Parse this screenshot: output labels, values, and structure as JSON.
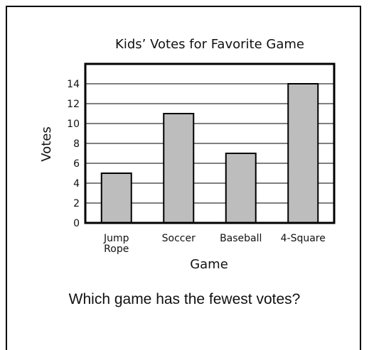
{
  "question": "Which game has the fewest votes?",
  "colors": {
    "bar": "#bdbdbd",
    "stroke": "#000000",
    "grid": "#000000",
    "text": "#111111"
  },
  "chart_data": {
    "type": "bar",
    "title": "Kids’ Votes for Favorite Game",
    "xlabel": "Game",
    "ylabel": "Votes",
    "categories": [
      [
        "Jump",
        "Rope"
      ],
      [
        "Soccer"
      ],
      [
        "Baseball"
      ],
      [
        "4-Square"
      ]
    ],
    "values": [
      5,
      11,
      7,
      14
    ],
    "ylim": [
      0,
      16
    ],
    "yticks": [
      0,
      2,
      4,
      6,
      8,
      10,
      12,
      14
    ],
    "grid": true
  }
}
